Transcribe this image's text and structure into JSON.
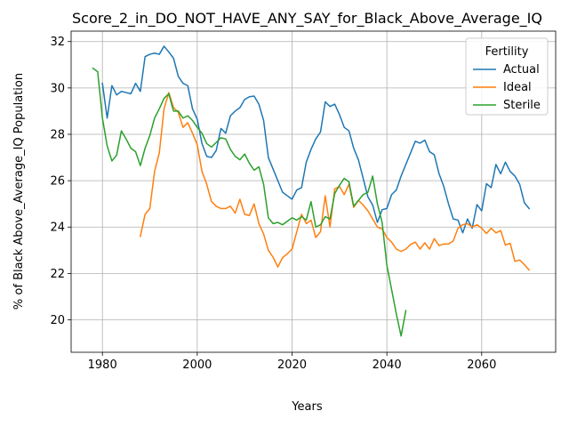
{
  "chart_data": {
    "type": "line",
    "title": "Score_2_in_DO_NOT_HAVE_ANY_SAY_for_Black_Above_Average_IQ",
    "xlabel": "Years",
    "ylabel": "% of Black Above_Average_IQ Population",
    "xlim": [
      1973.4,
      2075.6
    ],
    "ylim": [
      18.6,
      32.45
    ],
    "x_ticks": [
      1980,
      2000,
      2020,
      2040,
      2060
    ],
    "y_ticks": [
      20,
      22,
      24,
      26,
      28,
      30,
      32
    ],
    "grid": true,
    "legend": {
      "title": "Fertility",
      "placement": "top-right"
    },
    "series": [
      {
        "name": "Actual",
        "color": "#1f77b4",
        "x": [
          1980,
          1981,
          1982,
          1983,
          1984,
          1985,
          1986,
          1987,
          1988,
          1989,
          1990,
          1991,
          1992,
          1993,
          1994,
          1995,
          1996,
          1997,
          1998,
          1999,
          2000,
          2001,
          2002,
          2003,
          2004,
          2005,
          2006,
          2007,
          2008,
          2009,
          2010,
          2011,
          2012,
          2013,
          2014,
          2015,
          2016,
          2017,
          2018,
          2019,
          2020,
          2021,
          2022,
          2023,
          2024,
          2025,
          2026,
          2027,
          2028,
          2029,
          2030,
          2031,
          2032,
          2033,
          2034,
          2035,
          2036,
          2037,
          2038,
          2039,
          2040,
          2041,
          2042,
          2043,
          2044,
          2045,
          2046,
          2047,
          2048,
          2049,
          2050,
          2051,
          2052,
          2053,
          2054,
          2055,
          2056,
          2057,
          2058,
          2059,
          2060,
          2061,
          2062,
          2063,
          2064,
          2065,
          2066,
          2067,
          2068,
          2069,
          2070
        ],
        "values": [
          30.2,
          28.7,
          30.1,
          29.7,
          29.85,
          29.8,
          29.75,
          30.2,
          29.85,
          31.35,
          31.45,
          31.5,
          31.45,
          31.8,
          31.55,
          31.28,
          30.5,
          30.2,
          30.1,
          29.1,
          28.65,
          27.6,
          27.05,
          27.0,
          27.3,
          28.25,
          28.05,
          28.8,
          29.0,
          29.15,
          29.5,
          29.62,
          29.65,
          29.3,
          28.6,
          27.0,
          26.5,
          26.0,
          25.5,
          25.35,
          25.2,
          25.6,
          25.7,
          26.8,
          27.35,
          27.8,
          28.1,
          29.4,
          29.2,
          29.3,
          28.85,
          28.3,
          28.15,
          27.4,
          26.9,
          26.1,
          25.3,
          24.95,
          24.2,
          24.75,
          24.8,
          25.4,
          25.6,
          26.2,
          26.7,
          27.2,
          27.7,
          27.62,
          27.75,
          27.25,
          27.12,
          26.3,
          25.75,
          25.0,
          24.35,
          24.3,
          23.75,
          24.35,
          23.95,
          24.97,
          24.7,
          25.87,
          25.7,
          26.7,
          26.3,
          26.8,
          26.4,
          26.2,
          25.85,
          25.05,
          24.8
        ]
      },
      {
        "name": "Ideal",
        "color": "#ff7f0e",
        "x": [
          1988,
          1989,
          1990,
          1991,
          1992,
          1993,
          1994,
          1995,
          1996,
          1997,
          1998,
          1999,
          2000,
          2001,
          2002,
          2003,
          2004,
          2005,
          2006,
          2007,
          2008,
          2009,
          2010,
          2011,
          2012,
          2013,
          2014,
          2015,
          2016,
          2017,
          2018,
          2019,
          2020,
          2021,
          2022,
          2023,
          2024,
          2025,
          2026,
          2027,
          2028,
          2029,
          2030,
          2031,
          2032,
          2033,
          2034,
          2035,
          2036,
          2037,
          2038,
          2039,
          2040,
          2041,
          2042,
          2043,
          2044,
          2045,
          2046,
          2047,
          2048,
          2049,
          2050,
          2051,
          2052,
          2053,
          2054,
          2055,
          2056,
          2057,
          2058,
          2059,
          2060,
          2061,
          2062,
          2063,
          2064,
          2065,
          2066,
          2067,
          2068,
          2069,
          2070
        ],
        "values": [
          23.6,
          24.55,
          24.8,
          26.4,
          27.2,
          29.1,
          29.8,
          29.15,
          28.95,
          28.3,
          28.5,
          28.05,
          27.55,
          26.4,
          25.85,
          25.1,
          24.9,
          24.8,
          24.8,
          24.9,
          24.6,
          25.2,
          24.55,
          24.5,
          25.0,
          24.15,
          23.7,
          23.0,
          22.7,
          22.28,
          22.68,
          22.85,
          23.05,
          23.8,
          24.55,
          24.15,
          24.3,
          23.55,
          23.8,
          25.35,
          24.0,
          25.65,
          25.75,
          25.4,
          25.85,
          24.85,
          25.15,
          24.95,
          24.7,
          24.35,
          24.0,
          23.92,
          23.55,
          23.35,
          23.05,
          22.95,
          23.05,
          23.25,
          23.35,
          23.05,
          23.32,
          23.05,
          23.5,
          23.2,
          23.27,
          23.27,
          23.4,
          23.95,
          24.1,
          24.15,
          24.0,
          24.1,
          23.95,
          23.72,
          23.95,
          23.75,
          23.85,
          23.22,
          23.3,
          22.52,
          22.58,
          22.38,
          22.15
        ]
      },
      {
        "name": "Sterile",
        "color": "#2ca02c",
        "x": [
          1978,
          1979,
          1980,
          1981,
          1982,
          1983,
          1984,
          1985,
          1986,
          1987,
          1988,
          1989,
          1990,
          1991,
          1992,
          1993,
          1994,
          1995,
          1996,
          1997,
          1998,
          1999,
          2000,
          2001,
          2002,
          2003,
          2004,
          2005,
          2006,
          2007,
          2008,
          2009,
          2010,
          2011,
          2012,
          2013,
          2014,
          2015,
          2016,
          2017,
          2018,
          2019,
          2020,
          2021,
          2022,
          2023,
          2024,
          2025,
          2026,
          2027,
          2028,
          2029,
          2030,
          2031,
          2032,
          2033,
          2034,
          2035,
          2036,
          2037,
          2038,
          2039,
          2040,
          2041,
          2042,
          2043,
          2044
        ],
        "values": [
          30.85,
          30.7,
          28.7,
          27.5,
          26.85,
          27.1,
          28.15,
          27.8,
          27.4,
          27.25,
          26.65,
          27.4,
          27.95,
          28.7,
          29.1,
          29.55,
          29.75,
          29.0,
          29.0,
          28.7,
          28.8,
          28.6,
          28.3,
          28.05,
          27.6,
          27.45,
          27.65,
          27.85,
          27.8,
          27.35,
          27.05,
          26.9,
          27.15,
          26.75,
          26.45,
          26.6,
          25.85,
          24.4,
          24.15,
          24.2,
          24.1,
          24.25,
          24.4,
          24.3,
          24.45,
          24.3,
          25.1,
          24.0,
          24.1,
          24.45,
          24.35,
          25.45,
          25.8,
          26.1,
          25.95,
          24.9,
          25.15,
          25.4,
          25.5,
          26.2,
          25.0,
          24.2,
          22.35,
          21.3,
          20.25,
          19.3,
          20.4
        ]
      }
    ]
  }
}
